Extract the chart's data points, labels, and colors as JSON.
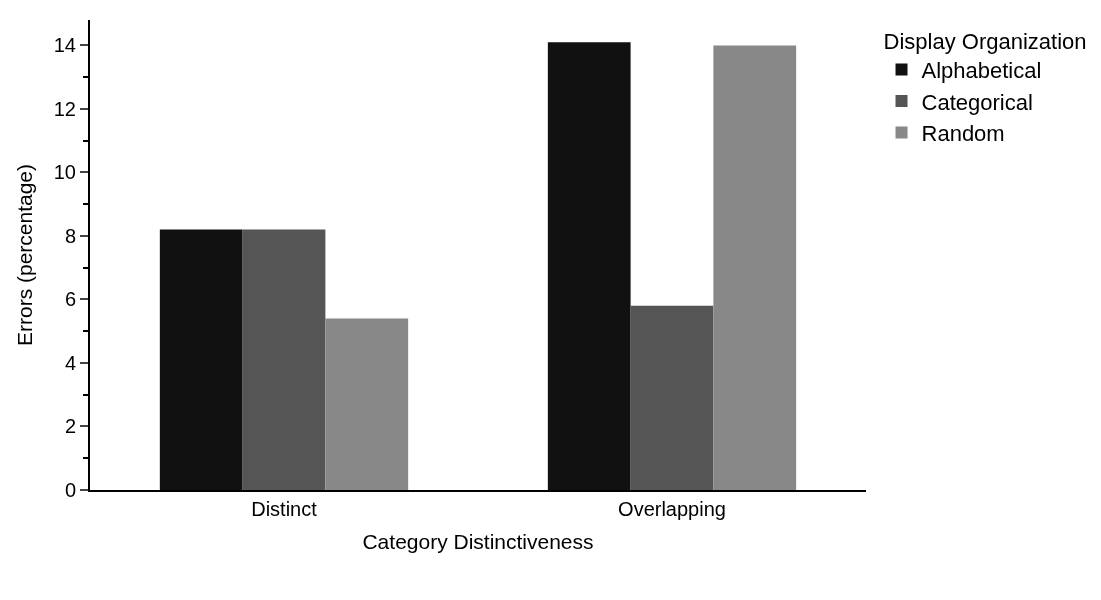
{
  "chart_data": {
    "type": "bar",
    "xlabel": "Category Distinctiveness",
    "ylabel": "Errors (percentage)",
    "legend_title": "Display Organization",
    "categories": [
      "Distinct",
      "Overlapping"
    ],
    "series": [
      {
        "name": "Alphabetical",
        "color": "#111111",
        "values": [
          8.2,
          14.1
        ]
      },
      {
        "name": "Categorical",
        "color": "#555555",
        "values": [
          8.2,
          5.8
        ]
      },
      {
        "name": "Random",
        "color": "#888888",
        "values": [
          5.4,
          14.0
        ]
      }
    ],
    "ylim": [
      0,
      14.8
    ],
    "yticks": [
      0,
      2,
      4,
      6,
      8,
      10,
      12,
      14
    ],
    "legend": "right"
  }
}
